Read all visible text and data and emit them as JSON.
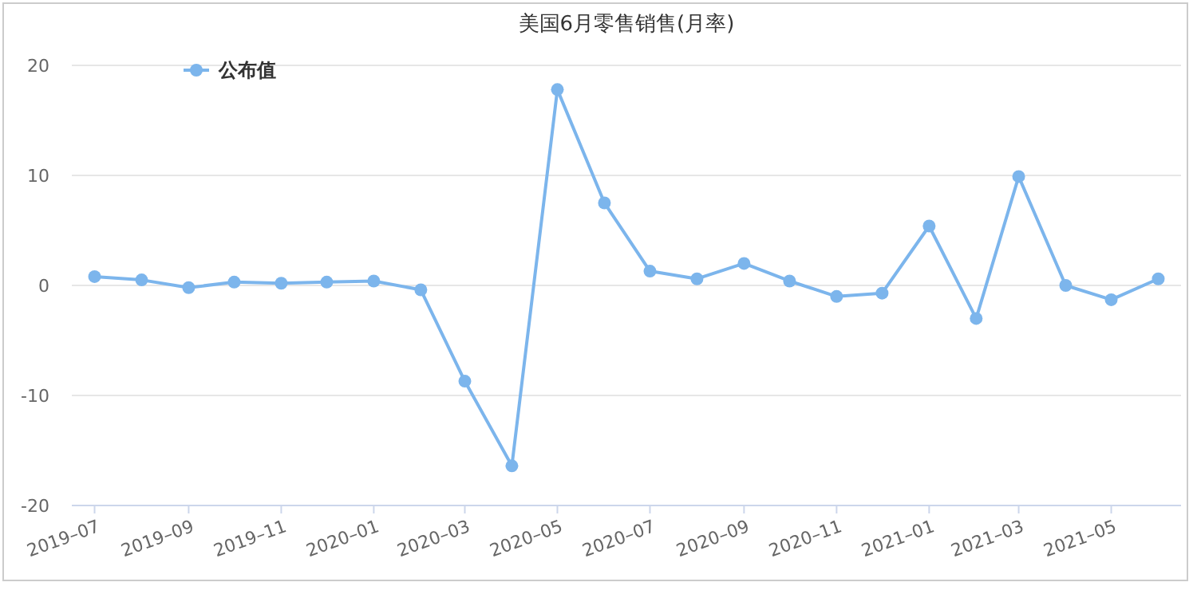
{
  "chart_data": {
    "type": "line",
    "title": "美国6月零售销售(月率)",
    "x": [
      "2019-07",
      "2019-08",
      "2019-09",
      "2019-10",
      "2019-11",
      "2019-12",
      "2020-01",
      "2020-02",
      "2020-03",
      "2020-04",
      "2020-05",
      "2020-06",
      "2020-07",
      "2020-08",
      "2020-09",
      "2020-10",
      "2020-11",
      "2020-12",
      "2021-01",
      "2021-02",
      "2021-03",
      "2021-04",
      "2021-05",
      "2021-06"
    ],
    "series": [
      {
        "name": "公布值",
        "color": "#7cb5ec",
        "values": [
          0.8,
          0.5,
          -0.2,
          0.3,
          0.2,
          0.3,
          0.4,
          -0.4,
          -8.7,
          -16.4,
          17.8,
          7.5,
          1.3,
          0.6,
          2.0,
          0.4,
          -1.0,
          -0.7,
          5.4,
          -3.0,
          9.9,
          0.0,
          -1.3,
          0.6
        ]
      }
    ],
    "xlim": [
      "2019-06-16",
      "2021-06-16"
    ],
    "xticks": [
      {
        "value": "2019-07",
        "label": "2019–07"
      },
      {
        "value": "2019-09",
        "label": "2019–09"
      },
      {
        "value": "2019-11",
        "label": "2019–11"
      },
      {
        "value": "2020-01",
        "label": "2020–01"
      },
      {
        "value": "2020-03",
        "label": "2020–03"
      },
      {
        "value": "2020-05",
        "label": "2020–05"
      },
      {
        "value": "2020-07",
        "label": "2020–07"
      },
      {
        "value": "2020-09",
        "label": "2020–09"
      },
      {
        "value": "2020-11",
        "label": "2020–11"
      },
      {
        "value": "2021-01",
        "label": "2021–01"
      },
      {
        "value": "2021-03",
        "label": "2021–03"
      },
      {
        "value": "2021-05",
        "label": "2021–05"
      }
    ],
    "ylim": [
      -20,
      20
    ],
    "yticks": [
      -20,
      -10,
      0,
      10,
      20
    ],
    "grid": "y",
    "legend": "top left",
    "marker": "circle",
    "line_style": "solid"
  }
}
